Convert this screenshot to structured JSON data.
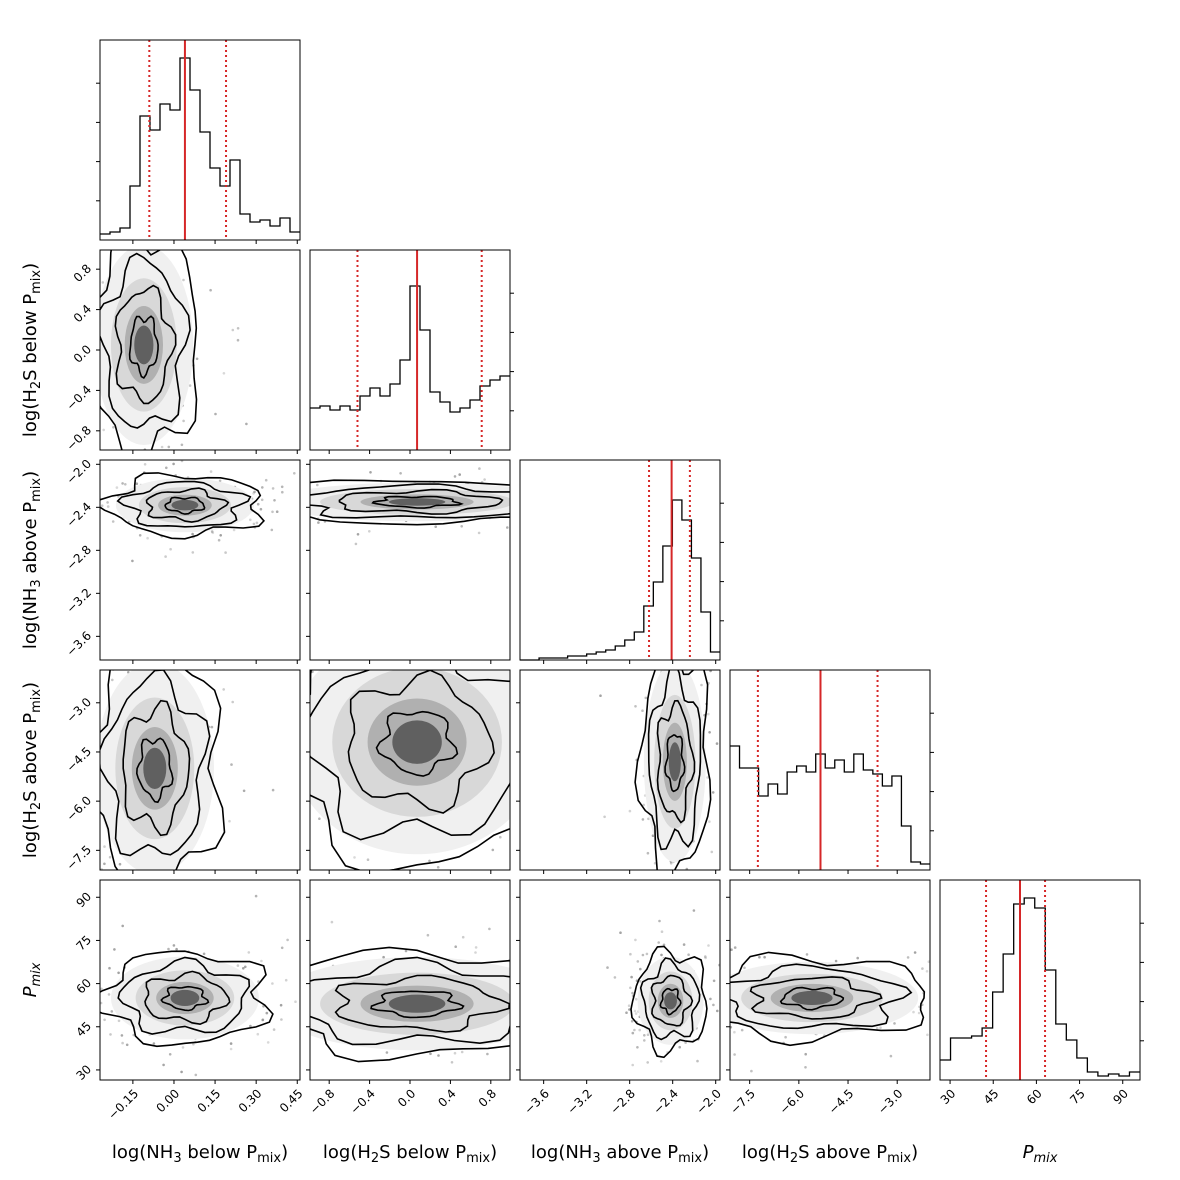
{
  "chart_data": {
    "type": "corner",
    "parameters": [
      {
        "key": "nh3_below",
        "label_pre": "log(NH",
        "label_sub": "3",
        "label_mid": " below P",
        "label_sub2": "mix",
        "label_post": ")",
        "range": [
          -0.27,
          0.46
        ],
        "ticks": [
          -0.15,
          0.0,
          0.15,
          0.3,
          0.45
        ],
        "tick_labels": [
          "−0.15",
          "0.00",
          "0.15",
          "0.30",
          "0.45"
        ],
        "median": 0.04,
        "q16": -0.09,
        "q84": 0.19,
        "hist": [
          0.03,
          0.04,
          0.06,
          0.27,
          0.62,
          0.55,
          0.68,
          0.65,
          0.91,
          0.75,
          0.54,
          0.36,
          0.27,
          0.4,
          0.13,
          0.09,
          0.1,
          0.07,
          0.11,
          0.04
        ]
      },
      {
        "key": "h2s_below",
        "label_pre": "log(H",
        "label_sub": "2",
        "label_mid": "S below P",
        "label_sub2": "mix",
        "label_post": ")",
        "range": [
          -0.99,
          0.99
        ],
        "ticks": [
          -0.8,
          -0.4,
          0.0,
          0.4,
          0.8
        ],
        "tick_labels": [
          "−0.8",
          "−0.4",
          "0.0",
          "0.4",
          "0.8"
        ],
        "median": 0.07,
        "q16": -0.52,
        "q84": 0.71,
        "hist": [
          0.21,
          0.22,
          0.2,
          0.22,
          0.2,
          0.27,
          0.31,
          0.27,
          0.33,
          0.45,
          0.82,
          0.6,
          0.29,
          0.24,
          0.19,
          0.21,
          0.25,
          0.32,
          0.35,
          0.37
        ]
      },
      {
        "key": "nh3_above",
        "label_pre": "log(NH",
        "label_sub": "3",
        "label_mid": " above P",
        "label_sub2": "mix",
        "label_post": ")",
        "range": [
          -3.82,
          -1.96
        ],
        "ticks": [
          -3.6,
          -3.2,
          -2.8,
          -2.4,
          -2.0
        ],
        "tick_labels": [
          "−3.6",
          "−3.2",
          "−2.8",
          "−2.4",
          "−2.0"
        ],
        "median": -2.41,
        "q16": -2.62,
        "q84": -2.24,
        "hist": [
          0.0,
          0.0,
          0.01,
          0.01,
          0.01,
          0.02,
          0.02,
          0.03,
          0.04,
          0.05,
          0.07,
          0.1,
          0.14,
          0.27,
          0.39,
          0.57,
          0.8,
          0.7,
          0.51,
          0.24,
          0.04
        ]
      },
      {
        "key": "h2s_above",
        "label_pre": "log(H",
        "label_sub": "2",
        "label_mid": "S above P",
        "label_sub2": "mix",
        "label_post": ")",
        "range": [
          -8.1,
          -2.0
        ],
        "ticks": [
          -7.5,
          -6.0,
          -4.5,
          -3.0
        ],
        "tick_labels": [
          "−7.5",
          "−6.0",
          "−4.5",
          "−3.0"
        ],
        "median": -5.34,
        "q16": -7.25,
        "q84": -3.6,
        "hist": [
          0.62,
          0.51,
          0.51,
          0.37,
          0.43,
          0.38,
          0.49,
          0.52,
          0.49,
          0.58,
          0.51,
          0.55,
          0.49,
          0.58,
          0.5,
          0.48,
          0.42,
          0.47,
          0.22,
          0.04,
          0.03
        ]
      },
      {
        "key": "pmix",
        "label_pre": "P",
        "label_sub": "mix",
        "label_mid": "",
        "label_sub2": "",
        "label_post": "",
        "italic": true,
        "range": [
          26.5,
          96.0
        ],
        "ticks": [
          30,
          45,
          60,
          75,
          90
        ],
        "tick_labels": [
          "30",
          "45",
          "60",
          "75",
          "90"
        ],
        "median": 54.3,
        "q16": 42.5,
        "q84": 63.0,
        "hist": [
          0.1,
          0.21,
          0.21,
          0.22,
          0.26,
          0.44,
          0.63,
          0.88,
          0.91,
          0.86,
          0.55,
          0.28,
          0.2,
          0.11,
          0.04,
          0.02,
          0.03,
          0.02,
          0.04
        ]
      }
    ],
    "pairs": [
      {
        "row": 1,
        "col": 0,
        "center": [
          -0.11,
          0.05
        ],
        "spread": [
          0.1,
          0.55
        ]
      },
      {
        "row": 2,
        "col": 0,
        "center": [
          0.04,
          -2.38
        ],
        "spread": [
          0.14,
          0.14
        ]
      },
      {
        "row": 2,
        "col": 1,
        "center": [
          0.07,
          -2.35
        ],
        "spread": [
          0.8,
          0.1
        ]
      },
      {
        "row": 3,
        "col": 0,
        "center": [
          -0.07,
          -5.0
        ],
        "spread": [
          0.12,
          1.8
        ]
      },
      {
        "row": 3,
        "col": 1,
        "center": [
          0.07,
          -4.2
        ],
        "spread": [
          0.7,
          1.9
        ]
      },
      {
        "row": 3,
        "col": 2,
        "center": [
          -2.38,
          -4.8
        ],
        "spread": [
          0.16,
          1.7
        ]
      },
      {
        "row": 4,
        "col": 0,
        "center": [
          0.04,
          55.0
        ],
        "spread": [
          0.15,
          8.0
        ]
      },
      {
        "row": 4,
        "col": 1,
        "center": [
          0.07,
          53.0
        ],
        "spread": [
          0.8,
          9.0
        ]
      },
      {
        "row": 4,
        "col": 2,
        "center": [
          -2.42,
          54.0
        ],
        "spread": [
          0.17,
          8.5
        ]
      },
      {
        "row": 4,
        "col": 3,
        "center": [
          -5.6,
          55.0
        ],
        "spread": [
          1.8,
          7.0
        ]
      }
    ],
    "grid": false,
    "legend": "none"
  }
}
